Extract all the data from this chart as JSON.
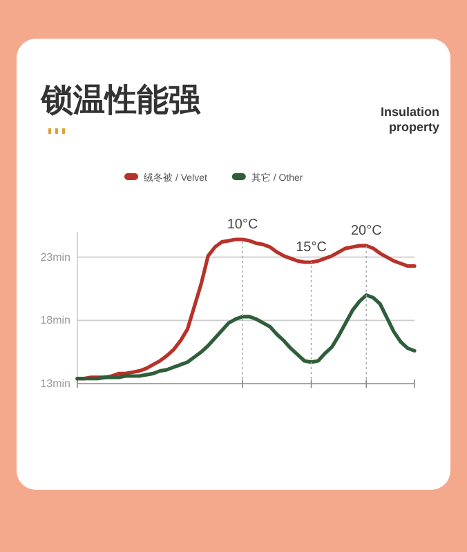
{
  "chart_data": {
    "type": "line",
    "title": "锁温性能强",
    "subtitle": "Insulation property",
    "categories": [
      null,
      null,
      null,
      null,
      null,
      null,
      null,
      null,
      null,
      null,
      null,
      null,
      null,
      null,
      null,
      null,
      null,
      null,
      null,
      null,
      null,
      null,
      null,
      null,
      "10°C",
      null,
      null,
      null,
      null,
      null,
      null,
      null,
      null,
      null,
      "15°C",
      null,
      null,
      null,
      null,
      null,
      null,
      null,
      "20°C",
      null,
      null,
      null,
      null,
      null,
      null,
      null
    ],
    "series": [
      {
        "name": "绒冬被 / Velvet",
        "color": "#b8322a",
        "values": [
          13.4,
          13.4,
          13.5,
          13.5,
          13.5,
          13.6,
          13.8,
          13.8,
          13.9,
          14.0,
          14.2,
          14.5,
          14.8,
          15.2,
          15.7,
          16.4,
          17.3,
          19.1,
          20.9,
          23.1,
          23.8,
          24.2,
          24.3,
          24.4,
          24.4,
          24.3,
          24.1,
          24.0,
          23.8,
          23.4,
          23.1,
          22.9,
          22.7,
          22.6,
          22.6,
          22.7,
          22.9,
          23.1,
          23.4,
          23.7,
          23.8,
          23.9,
          23.9,
          23.7,
          23.3,
          23.0,
          22.7,
          22.5,
          22.3,
          22.3
        ]
      },
      {
        "name": "其它 / Other",
        "color": "#2f5e3a",
        "values": [
          13.4,
          13.4,
          13.4,
          13.4,
          13.5,
          13.5,
          13.5,
          13.6,
          13.6,
          13.6,
          13.7,
          13.8,
          14.0,
          14.1,
          14.3,
          14.5,
          14.7,
          15.1,
          15.5,
          16.0,
          16.6,
          17.2,
          17.8,
          18.1,
          18.3,
          18.3,
          18.1,
          17.8,
          17.5,
          16.9,
          16.4,
          15.8,
          15.3,
          14.8,
          14.7,
          14.8,
          15.4,
          15.9,
          16.8,
          17.8,
          18.8,
          19.5,
          20.0,
          19.8,
          19.3,
          18.2,
          17.1,
          16.3,
          15.8,
          15.6
        ]
      }
    ],
    "ylim": [
      13,
      25
    ],
    "yticks": [
      {
        "value": 23,
        "label": "23min"
      },
      {
        "value": 18,
        "label": "18min"
      },
      {
        "value": 13,
        "label": "13min"
      }
    ],
    "grid": "y",
    "legend": "top",
    "line_style": "solid",
    "marker": "none",
    "ref_lines": [
      {
        "axis": "x",
        "value": "10°C",
        "line_style": "dotted",
        "color": "#aaaaaa"
      },
      {
        "axis": "x",
        "value": "15°C",
        "line_style": "dotted",
        "color": "#aaaaaa"
      },
      {
        "axis": "x",
        "value": "20°C",
        "line_style": "dotted",
        "color": "#aaaaaa"
      }
    ]
  }
}
